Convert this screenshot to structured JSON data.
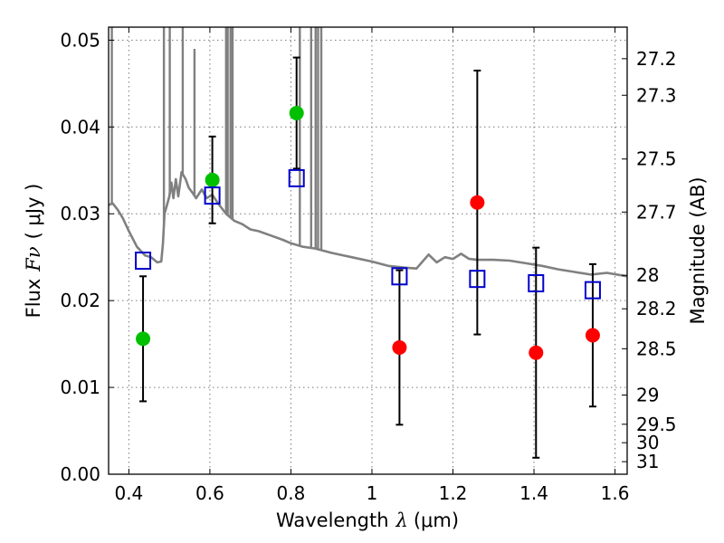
{
  "chart_data": {
    "type": "scatter",
    "xlabel_text": "Wavelength",
    "xlabel_symbol": "λ",
    "xlabel_unit": "(μm)",
    "ylabel_text": "Flux",
    "ylabel_symbol": "Fν",
    "ylabel_unit": "( μJy )",
    "y2label": "Magnitude (AB)",
    "xlim": [
      0.35,
      1.63
    ],
    "ylim": [
      0.0,
      0.0515
    ],
    "x_ticks": [
      0.4,
      0.6,
      0.8,
      1.0,
      1.2,
      1.4,
      1.6
    ],
    "x_tick_labels": [
      "0.4",
      "0.6",
      "0.8",
      "1",
      "1.2",
      "1.4",
      "1.6"
    ],
    "y_ticks": [
      0.0,
      0.01,
      0.02,
      0.03,
      0.04,
      0.05
    ],
    "y_tick_labels": [
      "0.00",
      "0.01",
      "0.02",
      "0.03",
      "0.04",
      "0.05"
    ],
    "y2_ticks": [
      {
        "mag": 27.2,
        "label": "27.2"
      },
      {
        "mag": 27.3,
        "label": "27.3"
      },
      {
        "mag": 27.5,
        "label": "27.5"
      },
      {
        "mag": 27.7,
        "label": "27.7"
      },
      {
        "mag": 28.0,
        "label": "28"
      },
      {
        "mag": 28.2,
        "label": "28.2"
      },
      {
        "mag": 28.5,
        "label": "28.5"
      },
      {
        "mag": 29.0,
        "label": "29"
      },
      {
        "mag": 29.5,
        "label": "29.5"
      },
      {
        "mag": 30.0,
        "label": "30"
      },
      {
        "mag": 31.0,
        "label": "31"
      }
    ],
    "grid": true,
    "colors": {
      "detection": "#00c000",
      "nondetection": "#ff0000",
      "model": "#0000cc",
      "sed": "#808080",
      "errorbar": "#000000"
    },
    "series": [
      {
        "marker": "circle",
        "color_key": "detection",
        "points": [
          {
            "x": 0.435,
            "y": 0.0156,
            "yerr": 0.0072
          },
          {
            "x": 0.606,
            "y": 0.0339,
            "yerr": 0.005
          },
          {
            "x": 0.814,
            "y": 0.0416,
            "yerr": 0.0064
          }
        ]
      },
      {
        "marker": "circle",
        "color_key": "nondetection",
        "points": [
          {
            "x": 1.068,
            "y": 0.0146,
            "yerr": 0.0089
          },
          {
            "x": 1.26,
            "y": 0.0313,
            "yerr": 0.0152
          },
          {
            "x": 1.405,
            "y": 0.014,
            "yerr": 0.0121
          },
          {
            "x": 1.545,
            "y": 0.016,
            "yerr": 0.0082
          }
        ]
      },
      {
        "marker": "open-square",
        "color_key": "model",
        "points": [
          {
            "x": 0.435,
            "y": 0.0246
          },
          {
            "x": 0.606,
            "y": 0.0321
          },
          {
            "x": 0.814,
            "y": 0.0341
          },
          {
            "x": 1.068,
            "y": 0.0228
          },
          {
            "x": 1.26,
            "y": 0.0225
          },
          {
            "x": 1.405,
            "y": 0.022
          },
          {
            "x": 1.545,
            "y": 0.0212
          }
        ]
      },
      {
        "marker": "line",
        "color_key": "sed",
        "points": [
          [
            0.35,
            0.031
          ],
          [
            0.36,
            0.0312
          ],
          [
            0.372,
            0.0305
          ],
          [
            0.385,
            0.0295
          ],
          [
            0.4,
            0.028
          ],
          [
            0.42,
            0.0262
          ],
          [
            0.44,
            0.0252
          ],
          [
            0.455,
            0.025
          ],
          [
            0.47,
            0.0244
          ],
          [
            0.48,
            0.0245
          ],
          [
            0.484,
            0.0265
          ],
          [
            0.488,
            0.03
          ],
          [
            0.494,
            0.031
          ],
          [
            0.5,
            0.032
          ],
          [
            0.505,
            0.0336
          ],
          [
            0.51,
            0.0318
          ],
          [
            0.516,
            0.034
          ],
          [
            0.522,
            0.032
          ],
          [
            0.53,
            0.0348
          ],
          [
            0.54,
            0.034
          ],
          [
            0.548,
            0.033
          ],
          [
            0.556,
            0.0325
          ],
          [
            0.566,
            0.0318
          ],
          [
            0.58,
            0.0328
          ],
          [
            0.592,
            0.0318
          ],
          [
            0.606,
            0.0322
          ],
          [
            0.62,
            0.0312
          ],
          [
            0.64,
            0.03
          ],
          [
            0.66,
            0.0292
          ],
          [
            0.68,
            0.0288
          ],
          [
            0.7,
            0.0282
          ],
          [
            0.72,
            0.028
          ],
          [
            0.75,
            0.0275
          ],
          [
            0.78,
            0.027
          ],
          [
            0.8,
            0.0266
          ],
          [
            0.83,
            0.0262
          ],
          [
            0.86,
            0.026
          ],
          [
            0.9,
            0.0255
          ],
          [
            0.95,
            0.025
          ],
          [
            1.0,
            0.0245
          ],
          [
            1.04,
            0.024
          ],
          [
            1.08,
            0.0238
          ],
          [
            1.11,
            0.0237
          ],
          [
            1.125,
            0.0245
          ],
          [
            1.14,
            0.0253
          ],
          [
            1.16,
            0.0244
          ],
          [
            1.18,
            0.025
          ],
          [
            1.2,
            0.0248
          ],
          [
            1.22,
            0.0254
          ],
          [
            1.24,
            0.0248
          ],
          [
            1.26,
            0.0247
          ],
          [
            1.3,
            0.0247
          ],
          [
            1.34,
            0.0246
          ],
          [
            1.38,
            0.0243
          ],
          [
            1.42,
            0.024
          ],
          [
            1.46,
            0.0236
          ],
          [
            1.5,
            0.0233
          ],
          [
            1.54,
            0.023
          ],
          [
            1.58,
            0.0232
          ],
          [
            1.63,
            0.0228
          ]
        ],
        "spikes": [
          {
            "x": 0.358,
            "top": 0.0515
          },
          {
            "x": 0.4865,
            "top": 0.0515
          },
          {
            "x": 0.501,
            "top": 0.0515
          },
          {
            "x": 0.533,
            "top": 0.0515
          },
          {
            "x": 0.562,
            "top": 0.049
          },
          {
            "x": 0.64,
            "top": 0.0515
          },
          {
            "x": 0.644,
            "top": 0.0515
          },
          {
            "x": 0.651,
            "top": 0.0515
          },
          {
            "x": 0.656,
            "top": 0.0515
          },
          {
            "x": 0.822,
            "top": 0.0515
          },
          {
            "x": 0.85,
            "top": 0.0515
          },
          {
            "x": 0.861,
            "top": 0.0515
          },
          {
            "x": 0.867,
            "top": 0.0515
          },
          {
            "x": 0.875,
            "top": 0.0515
          }
        ]
      }
    ]
  }
}
